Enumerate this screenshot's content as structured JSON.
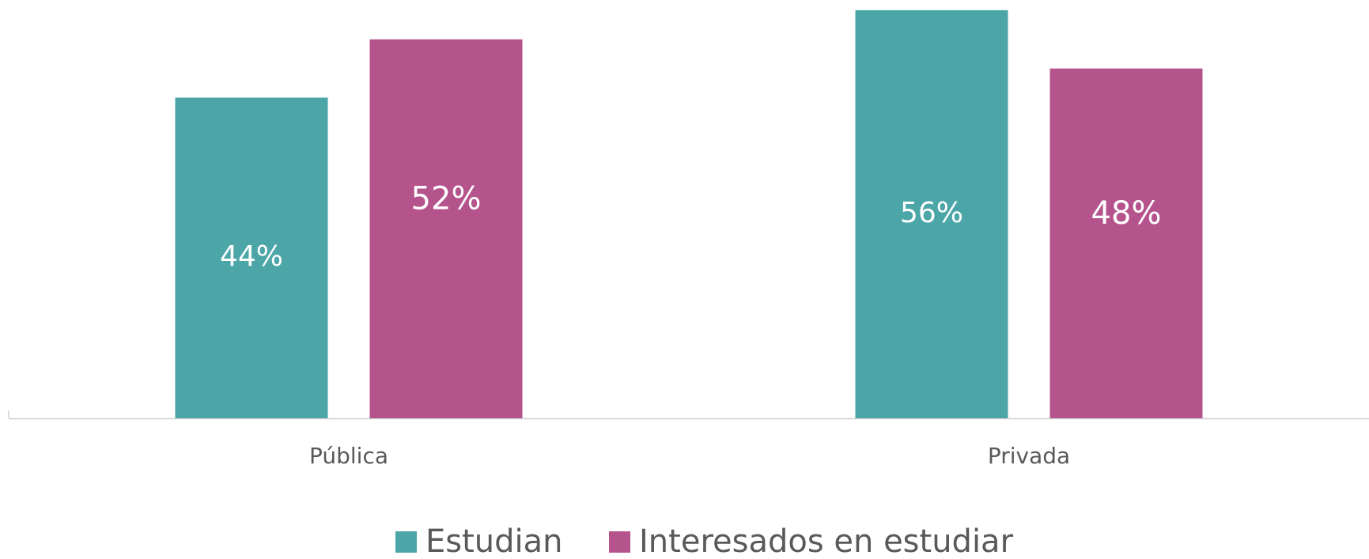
{
  "chart_data": {
    "type": "bar",
    "categories": [
      "Pública",
      "Privada"
    ],
    "series": [
      {
        "name": "Estudian",
        "color": "#4ca6a8",
        "values": [
          44,
          56
        ],
        "value_labels": [
          "44%",
          "56%"
        ]
      },
      {
        "name": "Interesados en estudiar",
        "color": "#b5538c",
        "values": [
          52,
          48
        ],
        "value_labels": [
          "52%",
          "48%"
        ]
      }
    ],
    "ylim": [
      0,
      57.4
    ]
  }
}
